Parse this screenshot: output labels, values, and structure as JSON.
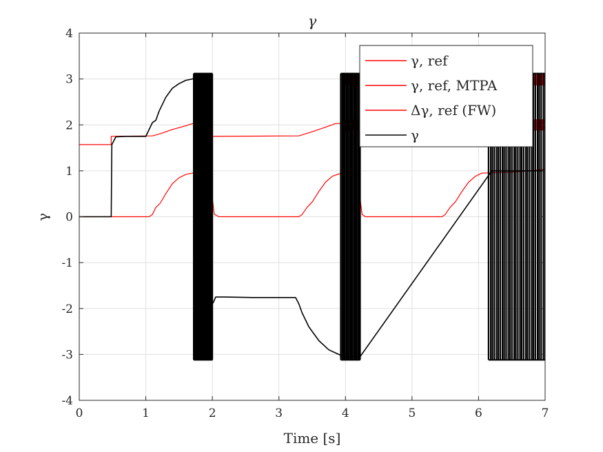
{
  "chart_data": {
    "type": "line",
    "title": "γ",
    "xlabel": "Time [s]",
    "ylabel": "γ",
    "xlim": [
      0,
      7
    ],
    "ylim": [
      -4,
      4
    ],
    "xticks": [
      0,
      1,
      2,
      3,
      4,
      5,
      6,
      7
    ],
    "yticks": [
      -4,
      -3,
      -2,
      -1,
      0,
      1,
      2,
      3,
      4
    ],
    "xtick_labels": [
      "0",
      "1",
      "2",
      "3",
      "4",
      "5",
      "6",
      "7"
    ],
    "ytick_labels": [
      "-4",
      "-3",
      "-2",
      "-1",
      "0",
      "1",
      "2",
      "3",
      "4"
    ],
    "grid": true,
    "legend_position": "top-right",
    "colors": {
      "ref": "#ff0000",
      "measured": "#000000",
      "grid": "#dfdfdf",
      "axis": "#262626"
    },
    "series": [
      {
        "name": "γ, ref",
        "color": "#ff0000",
        "x": [
          0,
          0.48,
          0.48,
          1.1,
          1.2,
          1.4,
          1.6,
          1.75,
          1.98,
          2.0,
          2.05,
          3.3,
          3.5,
          3.7,
          3.85,
          4.2,
          4.22,
          4.25,
          5.5,
          5.7,
          6.0,
          6.2,
          6.5,
          7.0
        ],
        "y": [
          1.57,
          1.57,
          1.75,
          1.76,
          1.8,
          1.9,
          1.98,
          2.05,
          2.05,
          1.75,
          1.75,
          1.76,
          1.85,
          1.95,
          2.03,
          2.05,
          1.75,
          1.75,
          1.76,
          1.85,
          1.95,
          1.98,
          2.0,
          2.02
        ]
      },
      {
        "name": "γ, ref, MTPA",
        "color": "#ff0000",
        "x": [
          0,
          1.05,
          1.1,
          1.15,
          1.22,
          1.3,
          1.4,
          1.5,
          1.6,
          1.7,
          1.98,
          2.0,
          2.03,
          2.1,
          3.3,
          3.35,
          3.42,
          3.5,
          3.6,
          3.7,
          3.8,
          3.9,
          4.2,
          4.22,
          4.25,
          4.3,
          5.45,
          5.5,
          5.57,
          5.65,
          5.75,
          5.85,
          5.95,
          6.05,
          6.5,
          7.0
        ],
        "y": [
          0,
          0,
          0.05,
          0.2,
          0.3,
          0.5,
          0.72,
          0.85,
          0.92,
          0.95,
          0.95,
          0.4,
          0.05,
          0,
          0,
          0.05,
          0.2,
          0.32,
          0.55,
          0.75,
          0.88,
          0.93,
          0.95,
          0.4,
          0.05,
          0,
          0,
          0.05,
          0.2,
          0.32,
          0.55,
          0.75,
          0.88,
          0.95,
          0.97,
          1.03
        ]
      },
      {
        "name": "Δγ, ref (FW)",
        "color": "#ff0000",
        "x": [
          1.72,
          1.72,
          1.99,
          1.99,
          3.95,
          3.95,
          4.21,
          4.21,
          6.2,
          6.2,
          7.0,
          7.0
        ],
        "y": [
          2.0,
          3.1,
          3.1,
          2.0,
          2.0,
          3.1,
          3.1,
          2.0,
          2.0,
          3.1,
          3.1,
          2.0
        ]
      },
      {
        "name": "γ",
        "color": "#000000",
        "x": [
          0,
          0.48,
          0.49,
          0.55,
          0.7,
          1.0,
          1.05,
          1.1,
          1.15,
          1.2,
          1.3,
          1.4,
          1.5,
          1.6,
          1.7,
          1.75,
          1.98,
          2.0,
          2.02,
          2.05,
          2.2,
          2.6,
          3.0,
          3.25,
          3.3,
          3.35,
          3.45,
          3.6,
          3.75,
          3.9,
          3.98,
          4.22,
          6.2,
          7.0
        ],
        "y": [
          0,
          0,
          1.57,
          1.74,
          1.75,
          1.75,
          1.9,
          2.05,
          2.1,
          2.3,
          2.6,
          2.8,
          2.9,
          2.97,
          3.0,
          3.05,
          3.05,
          -1.9,
          -1.85,
          -1.75,
          -1.75,
          -1.76,
          -1.76,
          -1.76,
          -1.9,
          -2.1,
          -2.4,
          -2.7,
          -2.9,
          -3.0,
          -3.05,
          -3.05,
          1.0,
          1.0
        ]
      }
    ],
    "switching_bands": [
      {
        "name": "γ",
        "x_start": 1.72,
        "x_end": 2.0,
        "y_low": -3.12,
        "y_high": 3.12,
        "count": 16
      },
      {
        "name": "γ",
        "x_start": 3.93,
        "x_end": 4.22,
        "y_low": -3.12,
        "y_high": 3.12,
        "count": 16
      },
      {
        "name": "γ",
        "x_start": 6.15,
        "x_end": 7.0,
        "y_low": -3.12,
        "y_high": 3.12,
        "count": 30
      }
    ]
  }
}
